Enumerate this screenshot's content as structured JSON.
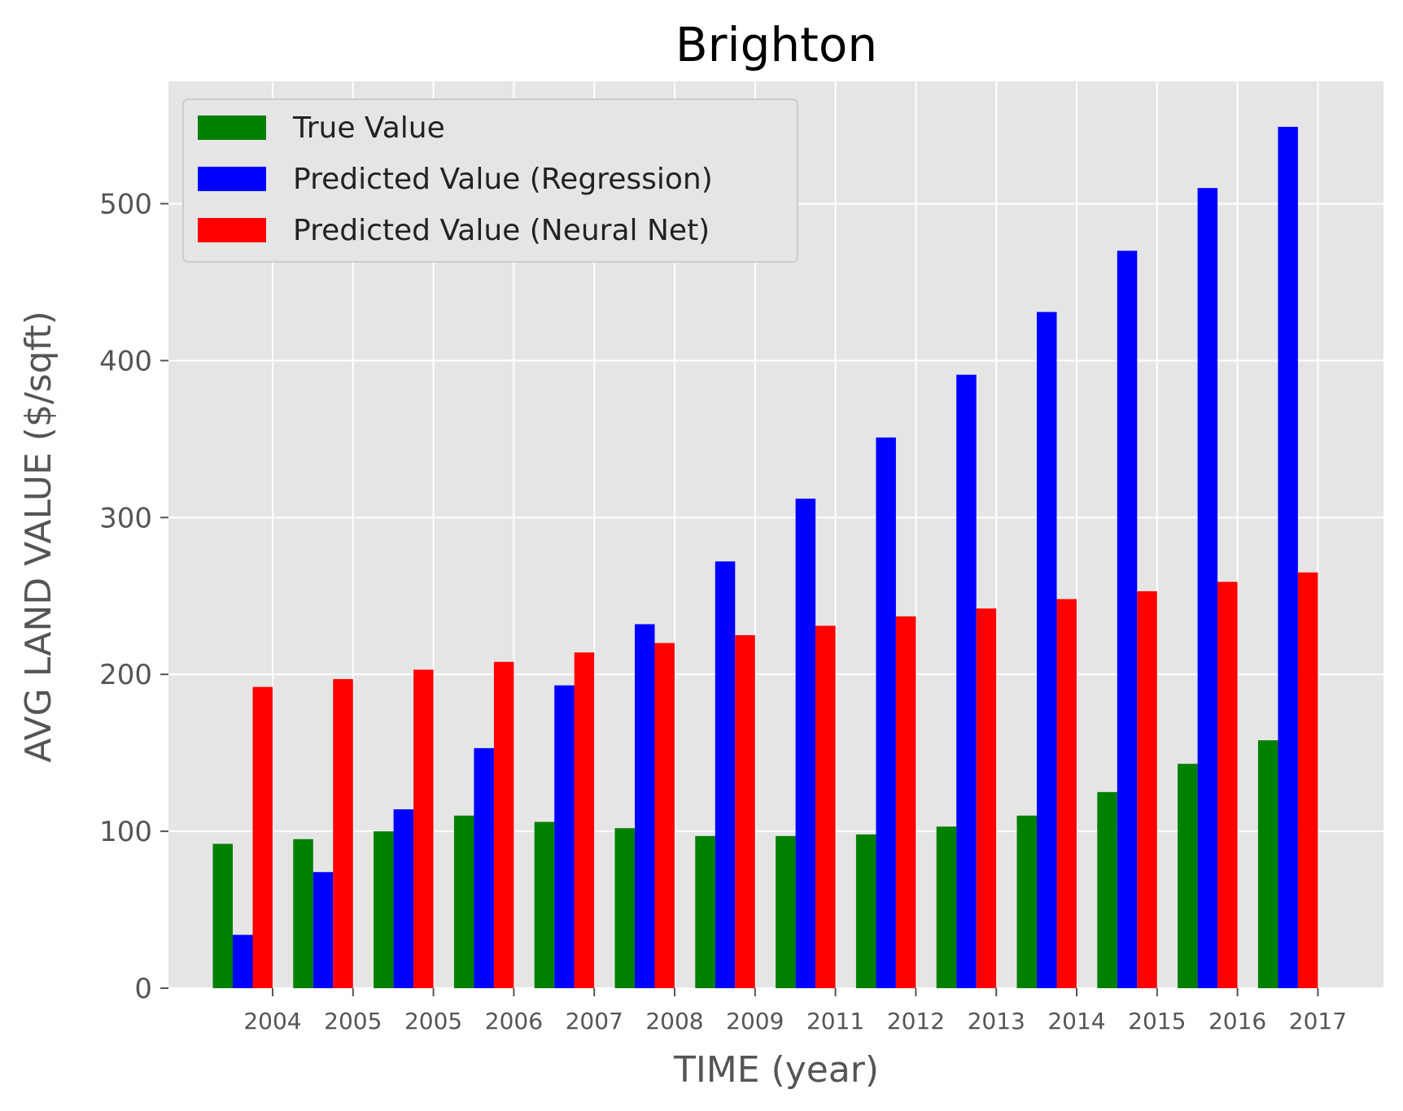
{
  "chart_data": {
    "type": "bar",
    "title": "Brighton",
    "xlabel": "TIME (year)",
    "ylabel": "AVG LAND VALUE ($/sqft)",
    "categories": [
      "2004",
      "2005",
      "2005",
      "2006",
      "2007",
      "2008",
      "2009",
      "2011",
      "2012",
      "2013",
      "2014",
      "2015",
      "2016",
      "2017"
    ],
    "series": [
      {
        "name": "True Value",
        "color": "#008000",
        "values": [
          92,
          95,
          100,
          110,
          106,
          102,
          97,
          97,
          98,
          103,
          110,
          125,
          143,
          158
        ]
      },
      {
        "name": "Predicted Value (Regression)",
        "color": "#0000ff",
        "values": [
          34,
          74,
          114,
          153,
          193,
          232,
          272,
          312,
          351,
          391,
          431,
          470,
          510,
          549
        ]
      },
      {
        "name": "Predicted Value (Neural Net)",
        "color": "#ff0000",
        "values": [
          192,
          197,
          203,
          208,
          214,
          220,
          225,
          231,
          237,
          242,
          248,
          253,
          259,
          265
        ]
      }
    ],
    "ylim": [
      0,
      578
    ],
    "yticks": [
      "0",
      "100",
      "200",
      "300",
      "400",
      "500"
    ],
    "grid": true,
    "legend_position": "upper-left",
    "background_color": "#e5e5e5"
  }
}
